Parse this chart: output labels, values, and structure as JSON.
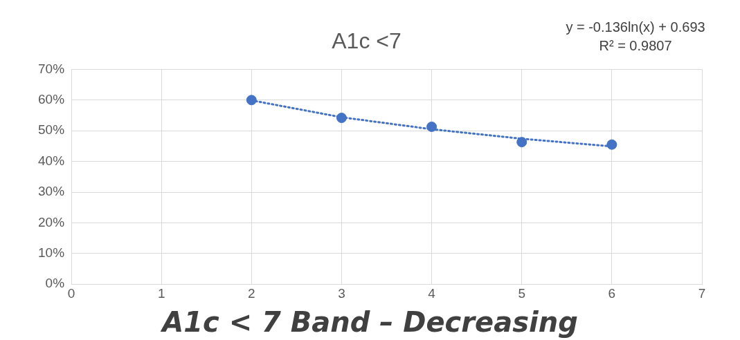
{
  "chart_data": {
    "type": "scatter",
    "title": "A1c <7",
    "series": [
      {
        "type": "scatter",
        "color": "#4472c4",
        "marker": "circle",
        "x": [
          2,
          3,
          4,
          5,
          6
        ],
        "values": [
          0.6,
          0.542,
          0.513,
          0.463,
          0.455
        ]
      },
      {
        "type": "line",
        "color": "#4472c4",
        "marker": "none",
        "line_style": "dotted",
        "x": [
          2,
          3,
          4,
          5,
          6
        ],
        "values": [
          0.599,
          0.544,
          0.505,
          0.474,
          0.449
        ]
      }
    ],
    "xlim": [
      0,
      7
    ],
    "xticks": [
      0,
      1,
      2,
      3,
      4,
      5,
      6,
      7
    ],
    "ylim": [
      0,
      0.7
    ],
    "yticks": [
      {
        "value": 0,
        "label": "0%"
      },
      {
        "value": 0.1,
        "label": "10%"
      },
      {
        "value": 0.2,
        "label": "20%"
      },
      {
        "value": 0.3,
        "label": "30%"
      },
      {
        "value": 0.4,
        "label": "40%"
      },
      {
        "value": 0.5,
        "label": "50%"
      },
      {
        "value": 0.6,
        "label": "60%"
      },
      {
        "value": 0.7,
        "label": "70%"
      }
    ],
    "grid": true,
    "legend": false,
    "annotations": [
      "y = -0.136ln(x) + 0.693",
      "R² = 0.9807",
      "A1c < 7 Band – Decreasing"
    ]
  }
}
